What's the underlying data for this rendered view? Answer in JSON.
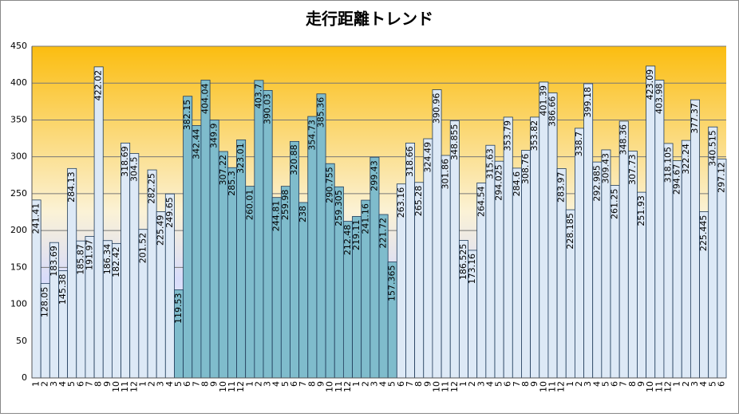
{
  "chart_data": {
    "type": "bar",
    "title": "走行距離トレンド",
    "categories": [
      "1",
      "2",
      "3",
      "4",
      "5",
      "6",
      "7",
      "8",
      "9",
      "10",
      "11",
      "12",
      "1",
      "2",
      "3",
      "4",
      "5",
      "6",
      "7",
      "8",
      "9",
      "10",
      "11",
      "12",
      "1",
      "2",
      "3",
      "4",
      "5",
      "6",
      "7",
      "8",
      "9",
      "10",
      "11",
      "12",
      "1",
      "2",
      "3",
      "4",
      "5",
      "6",
      "7",
      "8",
      "9",
      "10",
      "11",
      "12",
      "1",
      "2",
      "3",
      "4",
      "5",
      "6",
      "7",
      "8",
      "9",
      "10",
      "11",
      "12",
      "1",
      "2",
      "3",
      "4",
      "5",
      "6",
      "7",
      "8",
      "9",
      "10",
      "11",
      "12",
      "1",
      "2",
      "3",
      "4",
      "5",
      "6"
    ],
    "values": [
      241.41,
      128.05,
      183.69,
      145.38,
      284.13,
      185.87,
      191.97,
      422.02,
      186.34,
      182.42,
      318.69,
      304.5,
      201.52,
      282.25,
      225.49,
      249.65,
      119.53,
      382.15,
      342.44,
      404.04,
      349.9,
      307.22,
      285.3,
      323.01,
      260.01,
      403.7,
      390.03,
      244.81,
      259.98,
      320.88,
      238,
      354.73,
      385.36,
      290.755,
      259.305,
      212.48,
      219.11,
      241.16,
      299.43,
      221.72,
      157.365,
      263.16,
      318.66,
      265.28,
      324.49,
      390.96,
      301.86,
      348.855,
      186.525,
      173.16,
      264.54,
      315.63,
      294.025,
      353.79,
      284.6,
      308.76,
      353.82,
      401.39,
      386.66,
      283.97,
      228.185,
      338.7,
      399.18,
      292.985,
      309.43,
      261.25,
      348.36,
      307.73,
      251.93,
      423.09,
      403.98,
      318.105,
      294.67,
      322.24,
      377.37,
      225.445,
      340.515,
      297.12
    ],
    "colors": [
      "#dde9f6",
      "#dde9f6",
      "#dde9f6",
      "#dde9f6",
      "#dde9f6",
      "#dde9f6",
      "#dde9f6",
      "#dde9f6",
      "#dde9f6",
      "#dde9f6",
      "#dde9f6",
      "#dde9f6",
      "#dde9f6",
      "#dde9f6",
      "#dde9f6",
      "#dde9f6",
      "#7fbccc",
      "#7fbccc",
      "#7fbccc",
      "#7fbccc",
      "#7fbccc",
      "#7fbccc",
      "#7fbccc",
      "#7fbccc",
      "#7fbccc",
      "#7fbccc",
      "#7fbccc",
      "#7fbccc",
      "#7fbccc",
      "#7fbccc",
      "#7fbccc",
      "#7fbccc",
      "#7fbccc",
      "#7fbccc",
      "#7fbccc",
      "#7fbccc",
      "#7fbccc",
      "#7fbccc",
      "#7fbccc",
      "#7fbccc",
      "#7fbccc",
      "#dde9f6",
      "#dde9f6",
      "#dde9f6",
      "#dde9f6",
      "#dde9f6",
      "#dde9f6",
      "#dde9f6",
      "#dde9f6",
      "#dde9f6",
      "#dde9f6",
      "#dde9f6",
      "#dde9f6",
      "#dde9f6",
      "#dde9f6",
      "#dde9f6",
      "#dde9f6",
      "#dde9f6",
      "#dde9f6",
      "#dde9f6",
      "#dde9f6",
      "#dde9f6",
      "#dde9f6",
      "#dde9f6",
      "#dde9f6",
      "#dde9f6",
      "#dde9f6",
      "#dde9f6",
      "#dde9f6",
      "#dde9f6",
      "#dde9f6",
      "#dde9f6",
      "#dde9f6",
      "#dde9f6",
      "#dde9f6",
      "#dde9f6",
      "#dde9f6",
      "#dde9f6"
    ],
    "ylim": [
      0,
      450
    ],
    "yticks": [
      0,
      50,
      100,
      150,
      200,
      250,
      300,
      350,
      400,
      450
    ],
    "grid": true
  }
}
